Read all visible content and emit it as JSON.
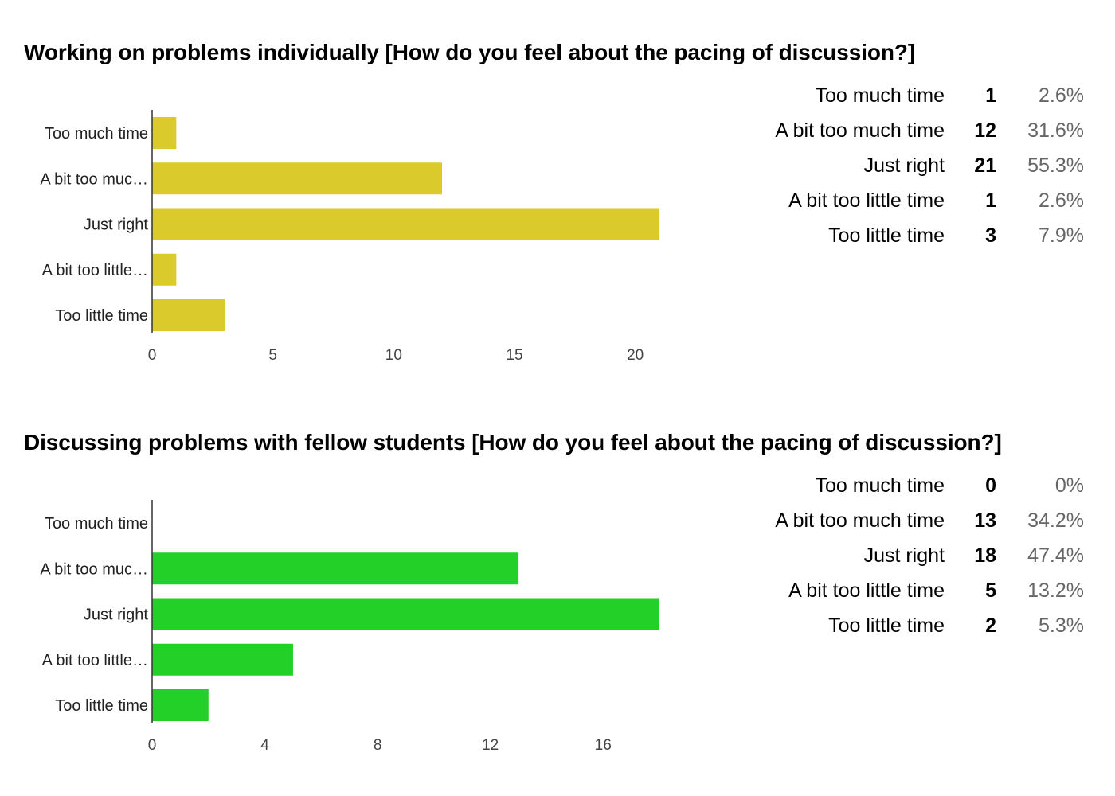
{
  "chart_data": [
    {
      "type": "bar",
      "orientation": "horizontal",
      "title": "Working on problems individually [How do you feel about the pacing of discussion?]",
      "categories": [
        "Too much time",
        "A bit too much time",
        "Just right",
        "A bit too little time",
        "Too little time"
      ],
      "category_axis_labels": [
        "Too much time",
        "A bit too muc…",
        "Just right",
        "A bit too little…",
        "Too little time"
      ],
      "values": [
        1,
        12,
        21,
        1,
        3
      ],
      "percentages": [
        "2.6%",
        "31.6%",
        "55.3%",
        "2.6%",
        "7.9%"
      ],
      "xticks": [
        0,
        5,
        10,
        15,
        20
      ],
      "xlim": [
        0,
        21
      ],
      "bar_color": "#dbca2b",
      "grid": false
    },
    {
      "type": "bar",
      "orientation": "horizontal",
      "title": "Discussing problems with fellow students [How do you feel about the pacing of discussion?]",
      "categories": [
        "Too much time",
        "A bit too much time",
        "Just right",
        "A bit too little time",
        "Too little time"
      ],
      "category_axis_labels": [
        "Too much time",
        "A bit too muc…",
        "Just right",
        "A bit too little…",
        "Too little time"
      ],
      "values": [
        0,
        13,
        18,
        5,
        2
      ],
      "percentages": [
        "0%",
        "34.2%",
        "47.4%",
        "13.2%",
        "5.3%"
      ],
      "xticks": [
        0,
        4,
        8,
        12,
        16
      ],
      "xlim": [
        0,
        18
      ],
      "bar_color": "#22d027",
      "grid": false
    }
  ],
  "colors": {
    "axis": "#333333",
    "pct_text": "#666666"
  }
}
